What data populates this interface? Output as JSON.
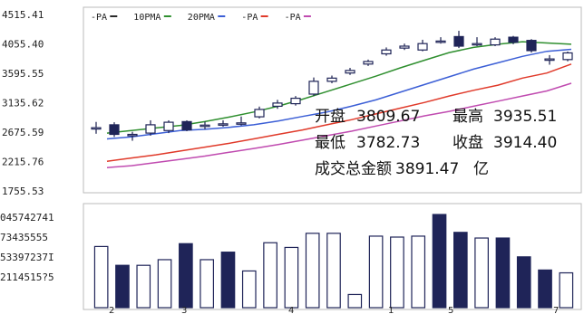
{
  "chart_data": [
    {
      "type": "candlestick",
      "ylim": [
        1755.53,
        4515.41
      ],
      "y_ticks": [
        "4515.41",
        "4055.40",
        "3595.55",
        "3135.62",
        "2675.59",
        "2215.76",
        "1755.53"
      ],
      "legend": [
        {
          "name": "-PA",
          "color": "#2a2a2a"
        },
        {
          "name": "10PMA",
          "color": "#2f8f2f"
        },
        {
          "name": "20PMA",
          "color": "#3c5fd6"
        },
        {
          "name": "-PA",
          "color": "#e03a2a"
        },
        {
          "name": "-PA",
          "color": "#c04bb0"
        }
      ],
      "candles": [
        {
          "open": 2745,
          "close": 2745,
          "high": 2835,
          "low": 2650
        },
        {
          "open": 2790,
          "close": 2640,
          "high": 2830,
          "low": 2600
        },
        {
          "open": 2640,
          "close": 2640,
          "high": 2680,
          "low": 2540
        },
        {
          "open": 2660,
          "close": 2790,
          "high": 2860,
          "low": 2620
        },
        {
          "open": 2700,
          "close": 2830,
          "high": 2860,
          "low": 2660
        },
        {
          "open": 2840,
          "close": 2710,
          "high": 2860,
          "low": 2690
        },
        {
          "open": 2785,
          "close": 2785,
          "high": 2840,
          "low": 2720
        },
        {
          "open": 2805,
          "close": 2805,
          "high": 2860,
          "low": 2760
        },
        {
          "open": 2820,
          "close": 2820,
          "high": 2920,
          "low": 2780
        },
        {
          "open": 2915,
          "close": 3030,
          "high": 3075,
          "low": 2890
        },
        {
          "open": 3080,
          "close": 3130,
          "high": 3180,
          "low": 3040
        },
        {
          "open": 3120,
          "close": 3205,
          "high": 3240,
          "low": 3090
        },
        {
          "open": 3270,
          "close": 3470,
          "high": 3530,
          "low": 3240
        },
        {
          "open": 3470,
          "close": 3520,
          "high": 3560,
          "low": 3440
        },
        {
          "open": 3600,
          "close": 3640,
          "high": 3680,
          "low": 3570
        },
        {
          "open": 3740,
          "close": 3780,
          "high": 3810,
          "low": 3710
        },
        {
          "open": 3900,
          "close": 3960,
          "high": 4000,
          "low": 3870
        },
        {
          "open": 3990,
          "close": 4020,
          "high": 4060,
          "low": 3960
        },
        {
          "open": 3960,
          "close": 4060,
          "high": 4120,
          "low": 3940
        },
        {
          "open": 4100,
          "close": 4100,
          "high": 4160,
          "low": 4060
        },
        {
          "open": 4170,
          "close": 4020,
          "high": 4260,
          "low": 3990
        },
        {
          "open": 4060,
          "close": 4060,
          "high": 4160,
          "low": 4020
        },
        {
          "open": 4040,
          "close": 4130,
          "high": 4160,
          "low": 4020
        },
        {
          "open": 4160,
          "close": 4080,
          "high": 4180,
          "low": 4050
        },
        {
          "open": 4110,
          "close": 3950,
          "high": 4130,
          "low": 3920
        },
        {
          "open": 3820,
          "close": 3820,
          "high": 3880,
          "low": 3730
        },
        {
          "open": 3810,
          "close": 3914.4,
          "high": 3935.51,
          "low": 3782.73
        }
      ],
      "moving_averages": [
        {
          "name": "10PMA",
          "color": "#2f8f2f",
          "values": [
            2660,
            2700,
            2740,
            2780,
            2840,
            2910,
            2990,
            3080,
            3190,
            3310,
            3430,
            3550,
            3680,
            3800,
            3920,
            4000,
            4050,
            4090,
            4070,
            4050
          ]
        },
        {
          "name": "20PMA",
          "color": "#3c5fd6",
          "values": [
            2570,
            2600,
            2650,
            2700,
            2720,
            2750,
            2790,
            2850,
            2920,
            2990,
            3080,
            3180,
            3300,
            3420,
            3540,
            3660,
            3760,
            3860,
            3940,
            3970
          ]
        },
        {
          "name": "-PA",
          "color": "#e03a2a",
          "values": [
            2220,
            2270,
            2320,
            2380,
            2440,
            2500,
            2570,
            2640,
            2710,
            2790,
            2870,
            2960,
            3050,
            3140,
            3240,
            3330,
            3410,
            3520,
            3600,
            3740
          ]
        },
        {
          "name": "-PA",
          "color": "#c04bb0",
          "values": [
            2120,
            2150,
            2200,
            2250,
            2300,
            2360,
            2420,
            2480,
            2550,
            2620,
            2690,
            2770,
            2850,
            2930,
            3000,
            3080,
            3160,
            3240,
            3320,
            3440
          ]
        }
      ],
      "info": {
        "open_label": "开盘",
        "open_value": "3809.67",
        "high_label": "最高",
        "high_value": "3935.51",
        "low_label": "最低",
        "low_value": "3782.73",
        "close_label": "收盘",
        "close_value": "3914.40",
        "turnover_label": "成交总金额",
        "turnover_value": "3891.47",
        "turnover_unit": "亿"
      }
    },
    {
      "type": "bar",
      "y_ticks": [
        "045742741",
        "73435555",
        "53397237I",
        "2114515?5"
      ],
      "x_ticks": [
        "2",
        "3",
        "4",
        "1",
        "5",
        "7"
      ],
      "bars": [
        {
          "value": 6.5,
          "filled": false
        },
        {
          "value": 4.5,
          "filled": true
        },
        {
          "value": 4.5,
          "filled": false
        },
        {
          "value": 5.1,
          "filled": false
        },
        {
          "value": 6.8,
          "filled": true
        },
        {
          "value": 5.1,
          "filled": false
        },
        {
          "value": 5.9,
          "filled": true
        },
        {
          "value": 3.9,
          "filled": false
        },
        {
          "value": 6.9,
          "filled": false
        },
        {
          "value": 6.4,
          "filled": false
        },
        {
          "value": 7.9,
          "filled": false
        },
        {
          "value": 7.9,
          "filled": false
        },
        {
          "value": 1.4,
          "filled": false
        },
        {
          "value": 7.6,
          "filled": false
        },
        {
          "value": 7.5,
          "filled": false
        },
        {
          "value": 7.6,
          "filled": false
        },
        {
          "value": 9.9,
          "filled": true
        },
        {
          "value": 8.0,
          "filled": true
        },
        {
          "value": 7.4,
          "filled": false
        },
        {
          "value": 7.4,
          "filled": true
        },
        {
          "value": 5.4,
          "filled": true
        },
        {
          "value": 4.0,
          "filled": true
        },
        {
          "value": 3.7,
          "filled": false
        }
      ]
    }
  ]
}
